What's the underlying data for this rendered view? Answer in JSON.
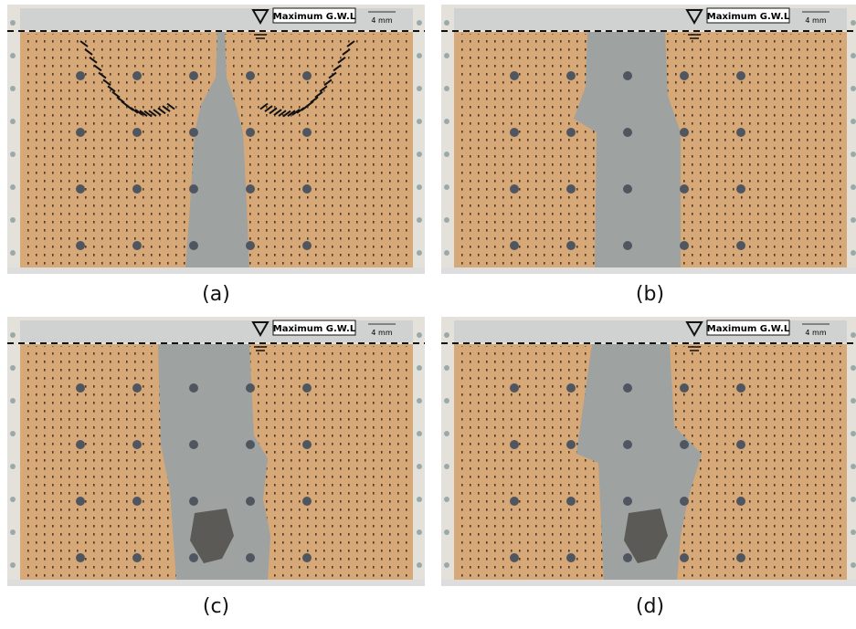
{
  "panels": [
    {
      "label": "(a)",
      "gwl_label": "Maximum G.W.L",
      "scale_label": "4 mm"
    },
    {
      "label": "(b)",
      "gwl_label": "Maximum G.W.L",
      "scale_label": "4 mm"
    },
    {
      "label": "(c)",
      "gwl_label": "Maximum G.W.L",
      "scale_label": "4 mm"
    },
    {
      "label": "(d)",
      "gwl_label": "Maximum G.W.L",
      "scale_label": "4 mm"
    }
  ]
}
